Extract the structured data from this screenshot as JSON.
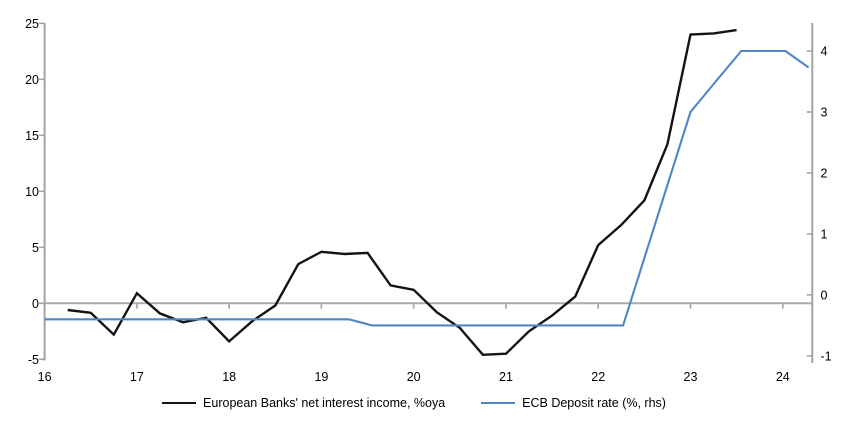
{
  "chart_data": {
    "type": "line",
    "title": "",
    "x_axis": {
      "min": 16,
      "max": 24.32,
      "ticks": [
        16,
        17,
        18,
        19,
        20,
        21,
        22,
        23,
        24
      ]
    },
    "left_axis": {
      "min": -5.02,
      "max": 25.03,
      "ticks": [
        25,
        20,
        15,
        10,
        5,
        0,
        -5
      ]
    },
    "right_axis": {
      "min": -1.06,
      "max": 4.46,
      "ticks": [
        4,
        3,
        2,
        1,
        0,
        -1
      ]
    },
    "zero_gridline_value": 0,
    "series": [
      {
        "name": "European Banks' net interest income, %oya",
        "axis": "left",
        "color": "#141414",
        "width": 2.4,
        "points": [
          [
            16.25,
            -0.6
          ],
          [
            16.5,
            -0.85
          ],
          [
            16.75,
            -2.8
          ],
          [
            17.0,
            0.9
          ],
          [
            17.25,
            -0.9
          ],
          [
            17.5,
            -1.7
          ],
          [
            17.75,
            -1.3
          ],
          [
            18.0,
            -3.4
          ],
          [
            18.25,
            -1.6
          ],
          [
            18.5,
            -0.2
          ],
          [
            18.75,
            3.5
          ],
          [
            19.0,
            4.6
          ],
          [
            19.25,
            4.4
          ],
          [
            19.5,
            4.5
          ],
          [
            19.75,
            1.6
          ],
          [
            20.0,
            1.2
          ],
          [
            20.25,
            -0.8
          ],
          [
            20.5,
            -2.2
          ],
          [
            20.75,
            -4.6
          ],
          [
            21.0,
            -4.5
          ],
          [
            21.25,
            -2.5
          ],
          [
            21.5,
            -1.1
          ],
          [
            21.75,
            0.6
          ],
          [
            22.0,
            5.2
          ],
          [
            22.25,
            7.0
          ],
          [
            22.5,
            9.2
          ],
          [
            22.75,
            14.2
          ],
          [
            23.0,
            24.0
          ],
          [
            23.25,
            24.1
          ],
          [
            23.5,
            24.4
          ]
        ]
      },
      {
        "name": "ECB Deposit rate (%, rhs)",
        "axis": "right",
        "color": "#4f86c6",
        "width": 2.1,
        "points": [
          [
            16.0,
            -0.4
          ],
          [
            19.3,
            -0.4
          ],
          [
            19.55,
            -0.5
          ],
          [
            22.27,
            -0.5
          ],
          [
            23.0,
            3.0
          ],
          [
            23.3,
            3.55
          ],
          [
            23.55,
            4.0
          ],
          [
            24.03,
            4.0
          ],
          [
            24.28,
            3.73
          ]
        ]
      }
    ],
    "legend": {
      "position": "bottom-center"
    }
  },
  "colors": {
    "background": "#ffffff",
    "axis": "#a3a3a3",
    "zero_gridline": "#ababab",
    "tick": "#a3a3a3",
    "text": "#000000"
  }
}
